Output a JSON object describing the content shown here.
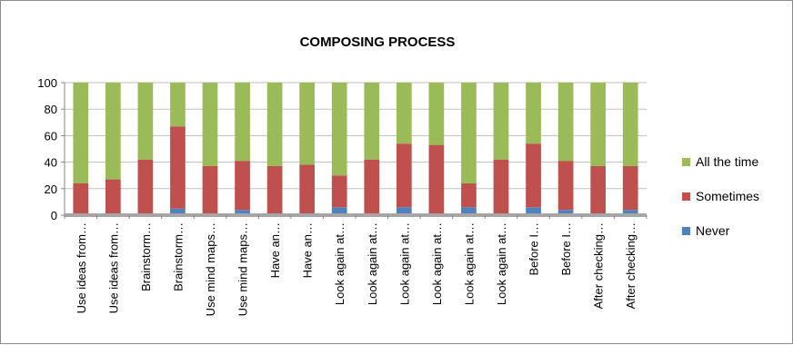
{
  "chart_data": {
    "type": "bar",
    "stacked": true,
    "title": "COMPOSING PROCESS",
    "xlabel": "",
    "ylabel": "",
    "ylim": [
      0,
      100
    ],
    "yticks": [
      0,
      20,
      40,
      60,
      80,
      100
    ],
    "grid": true,
    "legend_position": "right",
    "categories": [
      "Use ideas from…",
      "Use ideas from…",
      "Brainstorm…",
      "Brainstorm…",
      "Use mind maps…",
      "Use mind maps…",
      "Have an…",
      "Have an…",
      "Look again at…",
      "Look again at…",
      "Look again at…",
      "Look again at…",
      "Look again at…",
      "Look again at…",
      "Before I…",
      "Before I…",
      "After checking…",
      "After checking…"
    ],
    "series": [
      {
        "name": "Never",
        "color": "#4f81bd",
        "values": [
          0,
          0,
          0,
          5,
          0,
          4,
          0,
          0,
          6,
          0,
          6,
          0,
          6,
          0,
          6,
          4,
          0,
          4
        ]
      },
      {
        "name": "Sometimes",
        "color": "#c0504d",
        "values": [
          24,
          27,
          42,
          62,
          37,
          37,
          37,
          38,
          24,
          42,
          48,
          53,
          18,
          42,
          48,
          37,
          37,
          33
        ]
      },
      {
        "name": "All the time",
        "color": "#9bbb59",
        "values": [
          76,
          73,
          58,
          33,
          63,
          59,
          63,
          62,
          70,
          58,
          46,
          47,
          76,
          58,
          46,
          59,
          63,
          63
        ]
      }
    ]
  }
}
